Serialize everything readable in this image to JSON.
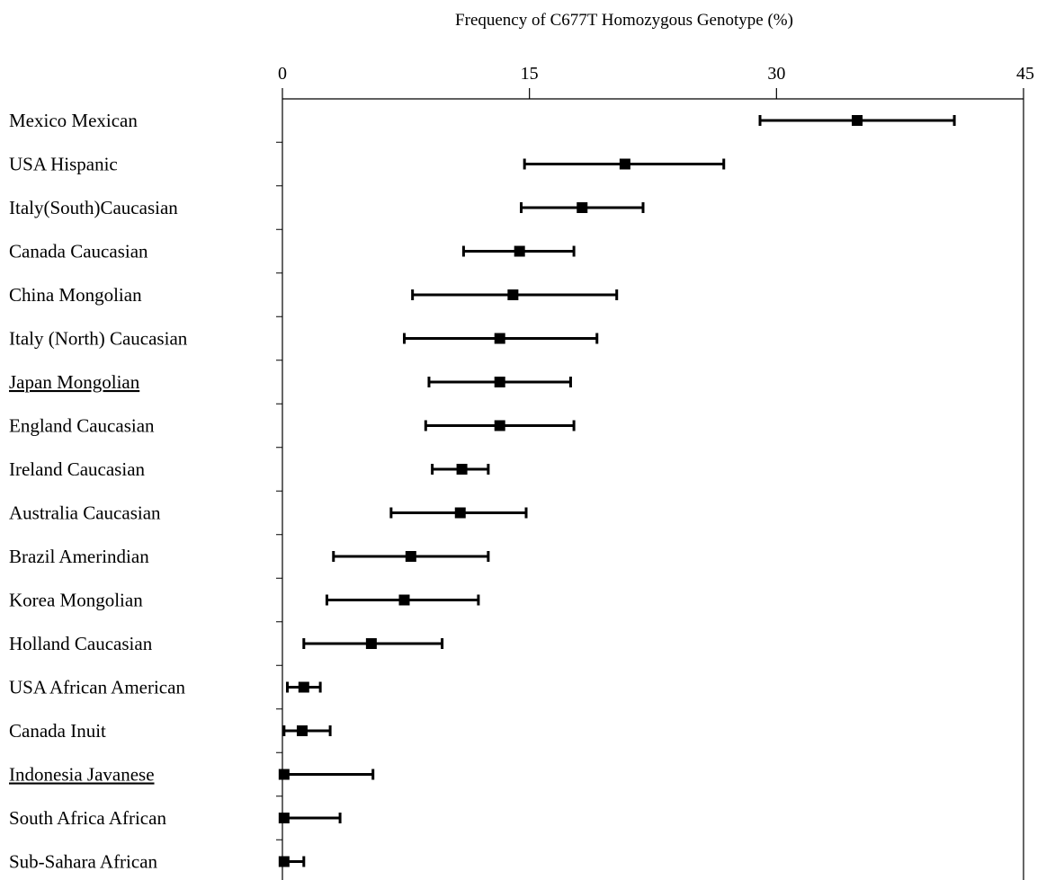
{
  "chart_data": {
    "type": "scatter",
    "orientation": "horizontal",
    "title": "Frequency of C677T Homozygous Genotype (%)",
    "xlim": [
      0,
      45
    ],
    "xticks": [
      "0",
      "15",
      "30",
      "45"
    ],
    "xaxis_position": "top",
    "grid": false,
    "underlined_categories": [
      "Japan Mongolian",
      "Indonesia Javanese"
    ],
    "categories": [
      "Mexico Mexican",
      "USA Hispanic",
      "Italy(South)Caucasian",
      "Canada Caucasian",
      "China Mongolian",
      "Italy (North) Caucasian",
      "Japan Mongolian",
      "England Caucasian",
      "Ireland Caucasian",
      "Australia Caucasian",
      "Brazil Amerindian",
      "Korea Mongolian",
      "Holland Caucasian",
      "USA African American",
      "Canada Inuit",
      "Indonesia Javanese",
      "South Africa African",
      "Sub-Sahara African"
    ],
    "values": [
      34.9,
      20.8,
      18.2,
      14.4,
      14.0,
      13.2,
      13.2,
      13.2,
      10.9,
      10.8,
      7.8,
      7.4,
      5.4,
      1.3,
      1.2,
      0.1,
      0.1,
      0.1
    ],
    "lower": [
      29.0,
      14.7,
      14.5,
      11.0,
      7.9,
      7.4,
      8.9,
      8.7,
      9.1,
      6.6,
      3.1,
      2.7,
      1.3,
      0.3,
      0.1,
      0.0,
      0.0,
      0.0
    ],
    "upper": [
      40.8,
      26.8,
      21.9,
      17.7,
      20.3,
      19.1,
      17.5,
      17.7,
      12.5,
      14.8,
      12.5,
      11.9,
      9.7,
      2.3,
      2.9,
      5.5,
      3.5,
      1.3
    ]
  }
}
